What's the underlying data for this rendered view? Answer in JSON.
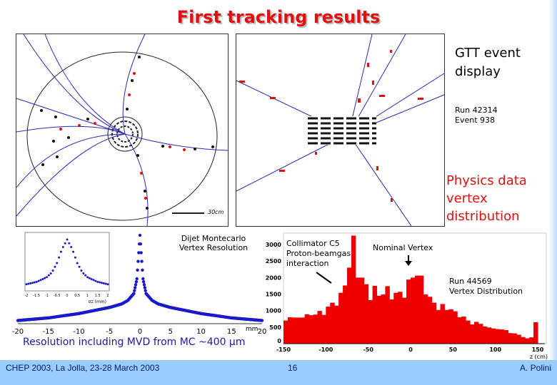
{
  "title": "First tracking results",
  "gtt_label": "GTT event display",
  "run_event": {
    "run": "Run 42314",
    "event": "Event 938"
  },
  "physics_label": "Physics data vertex distribution",
  "event_display": {
    "scale_label": "30cm"
  },
  "resolution_caption": "Resolution including MVD from MC ~400 µm",
  "footer": {
    "left": "CHEP 2003, La Jolla, 23-28 March 2003",
    "center": "16",
    "right": "A. Polini"
  },
  "colors": {
    "title": "#e01010",
    "footer_bg": "#99ccff",
    "caption": "#1a1aa0",
    "hist": "#ee0000",
    "curve": "#1a1acc"
  },
  "chart_data": [
    {
      "type": "scatter",
      "annotation": "Dijet Montecarlo Vertex Resolution",
      "xlabel": "mm",
      "xlim": [
        -20,
        20
      ],
      "xticks": [
        "-20",
        "-15",
        "-10",
        "-5",
        "0",
        "5",
        "10",
        "15",
        "20"
      ],
      "x": [
        -20,
        -15,
        -10,
        -5,
        -3,
        -2,
        -1,
        -0.5,
        -0.25,
        0,
        0.25,
        0.5,
        1,
        2,
        3,
        5,
        10,
        15,
        20
      ],
      "y": [
        0.02,
        0.05,
        0.1,
        0.17,
        0.21,
        0.25,
        0.33,
        0.5,
        0.75,
        1.0,
        0.75,
        0.5,
        0.33,
        0.25,
        0.21,
        0.17,
        0.1,
        0.05,
        0.02
      ],
      "inset": {
        "xlabel": "σz (mm)",
        "xlim": [
          -2,
          2
        ],
        "xticks": [
          "-2",
          "-1.5",
          "-1",
          "-0.5",
          "0",
          "0.5",
          "1",
          "1.5",
          "2"
        ],
        "x": [
          -2,
          -1.5,
          -1,
          -0.75,
          -0.5,
          -0.25,
          0,
          0.25,
          0.5,
          0.75,
          1,
          1.5,
          2
        ],
        "y": [
          0.05,
          0.1,
          0.2,
          0.3,
          0.5,
          0.8,
          1.0,
          0.8,
          0.5,
          0.3,
          0.2,
          0.1,
          0.05
        ]
      }
    },
    {
      "type": "bar",
      "xlabel": "z (cm)",
      "xlim": [
        -150,
        150
      ],
      "ylim": [
        0,
        3300
      ],
      "xticks": [
        "-150",
        "-100",
        "-50",
        "0",
        "50",
        "100",
        "150"
      ],
      "yticks": [
        "0",
        "500",
        "1000",
        "1500",
        "2000",
        "2500",
        "3000"
      ],
      "bin_width": 5,
      "values": [
        700,
        800,
        790,
        790,
        790,
        890,
        860,
        880,
        990,
        870,
        1120,
        1240,
        1150,
        1540,
        1760,
        2300,
        3270,
        2000,
        2000,
        1800,
        1320,
        1750,
        1450,
        1490,
        1740,
        1340,
        1540,
        1570,
        1390,
        1940,
        2000,
        2060,
        2060,
        1490,
        1420,
        1240,
        1020,
        1200,
        1020,
        1040,
        980,
        800,
        820,
        700,
        580,
        660,
        600,
        520,
        490,
        460,
        440,
        430,
        410,
        320,
        310,
        270,
        200,
        160,
        190,
        650
      ],
      "annotations": [
        "Collimator C5 Proton-beamgas interaction",
        "Nominal Vertex",
        "Run 44569 Vertex Distribution"
      ]
    }
  ]
}
